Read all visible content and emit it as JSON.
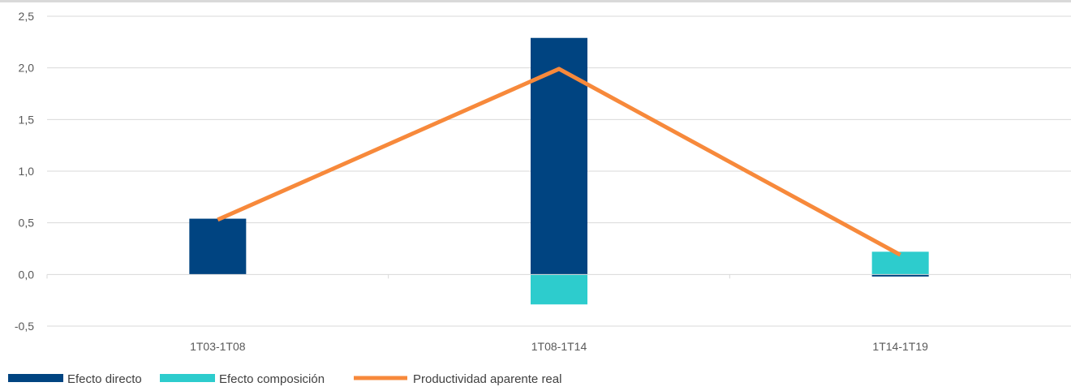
{
  "chart_data": {
    "type": "bar",
    "stacked": true,
    "categories": [
      "1T03-1T08",
      "1T08-1T14",
      "1T14-1T19"
    ],
    "series": [
      {
        "name": "Efecto directo",
        "kind": "bar",
        "color": "#004481",
        "values": [
          0.54,
          2.29,
          -0.02
        ]
      },
      {
        "name": "Efecto composición",
        "kind": "bar",
        "color": "#2DCCCD",
        "values": [
          0.0,
          -0.29,
          0.22
        ]
      },
      {
        "name": "Productividad aparente real",
        "kind": "line",
        "color": "#F7893B",
        "values": [
          0.53,
          1.99,
          0.19
        ]
      }
    ],
    "ylim": [
      -0.5,
      2.5
    ],
    "yticks": [
      "-0,5",
      "0,0",
      "0,5",
      "1,0",
      "1,5",
      "2,0",
      "2,5"
    ],
    "ytick_values": [
      -0.5,
      0.0,
      0.5,
      1.0,
      1.5,
      2.0,
      2.5
    ],
    "grid": true,
    "legend_position": "bottom-left",
    "title": "",
    "xlabel": "",
    "ylabel": ""
  }
}
